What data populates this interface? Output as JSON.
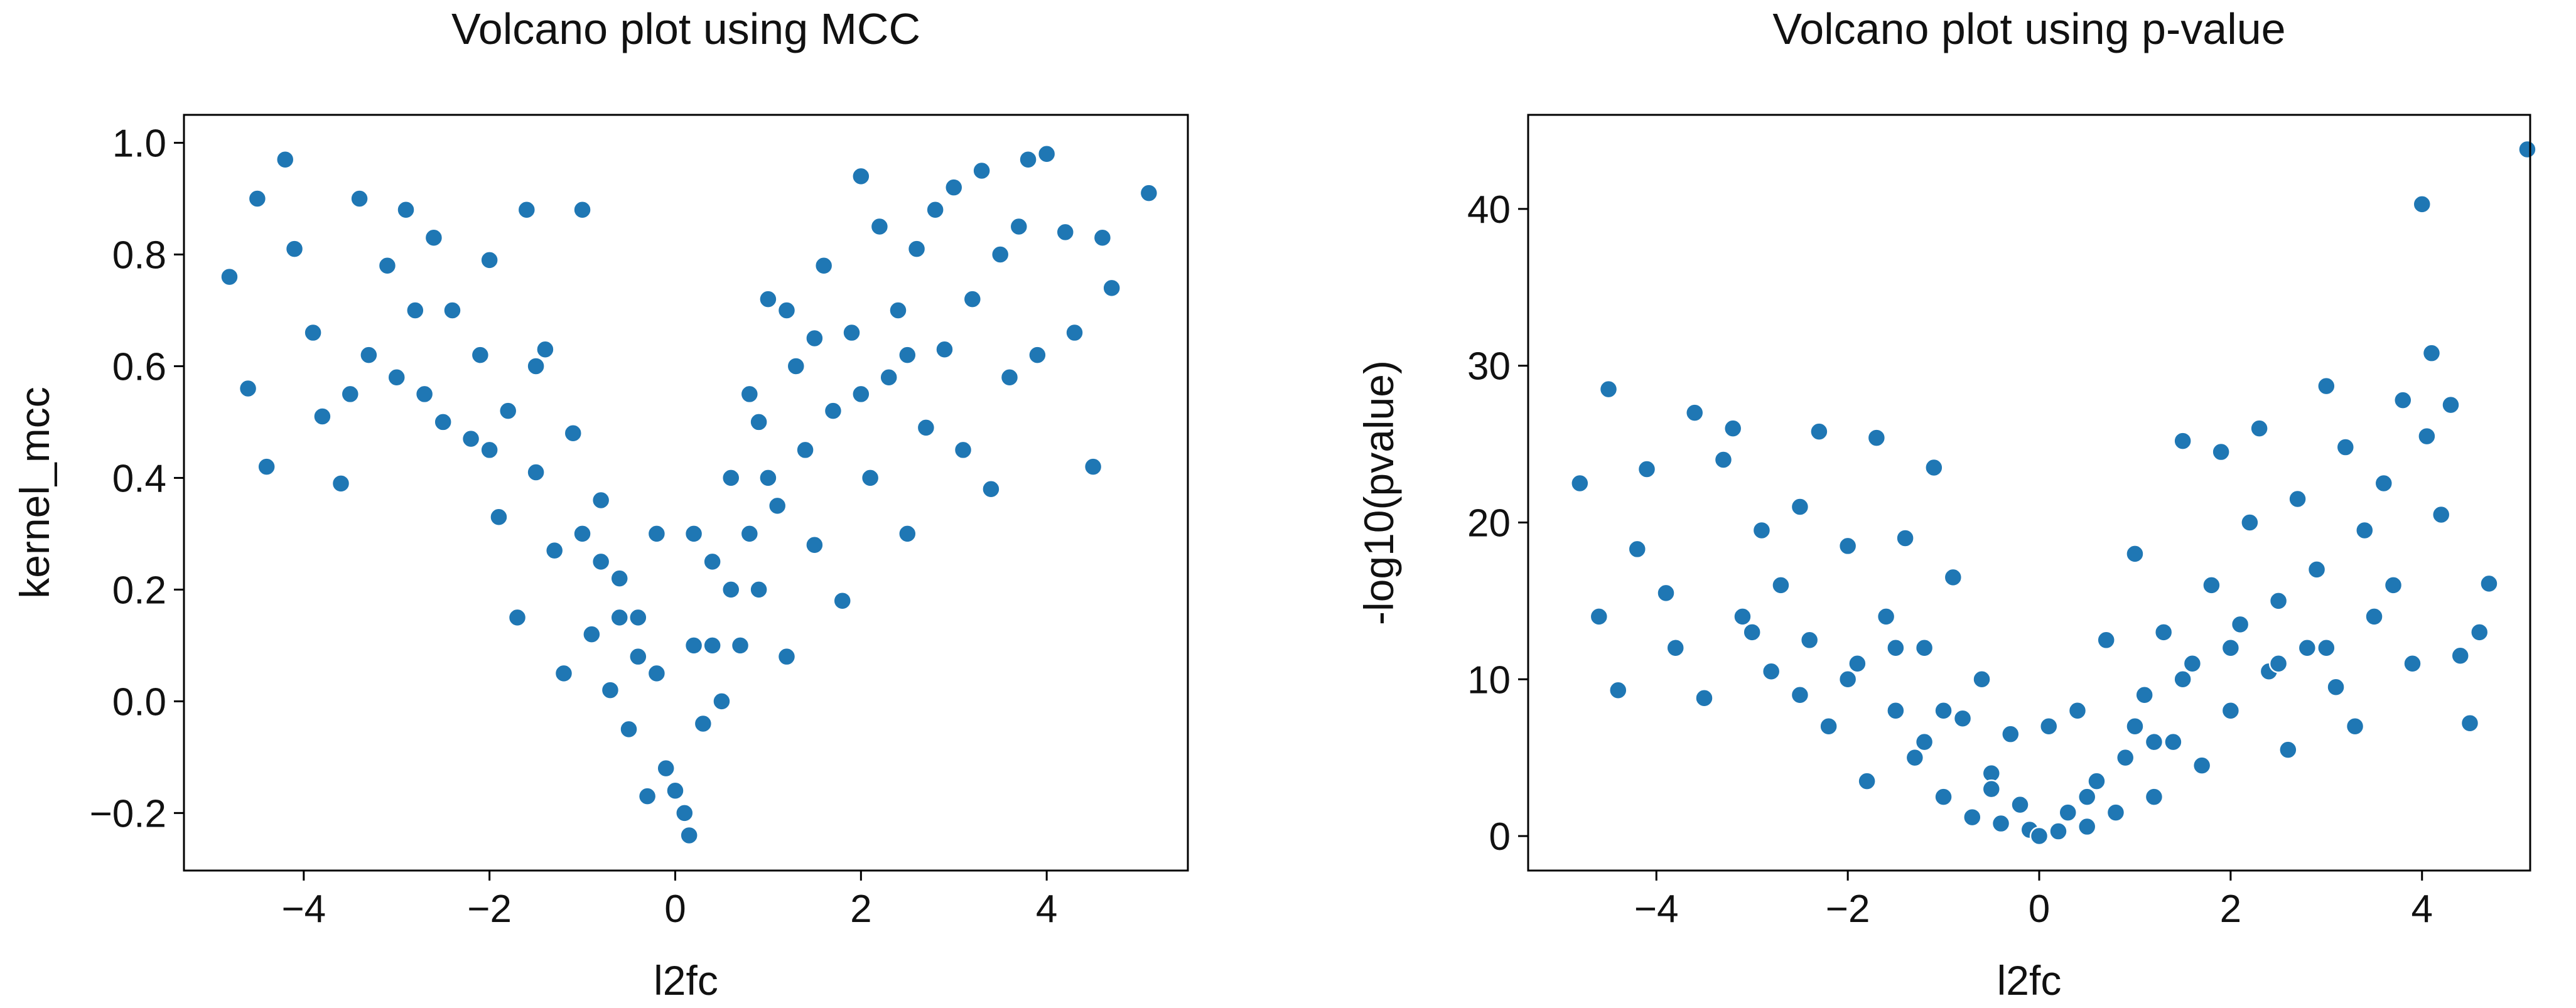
{
  "chart_data": [
    {
      "type": "scatter",
      "title": "Volcano plot using MCC",
      "xlabel": "l2fc",
      "ylabel": "kernel_mcc",
      "color": "#1f77b4",
      "xlim": [
        -5.29,
        5.52
      ],
      "ylim": [
        -0.303,
        1.05
      ],
      "xticks": [
        {
          "value": -4,
          "label": "−4"
        },
        {
          "value": -2,
          "label": "−2"
        },
        0,
        2,
        4
      ],
      "yticks": [
        {
          "value": -0.2,
          "label": "−0.2"
        },
        {
          "value": 0,
          "label": "0.0"
        },
        0.2,
        0.4,
        0.6,
        0.8,
        {
          "value": 1,
          "label": "1.0"
        }
      ],
      "x": [
        -4.8,
        -4.6,
        -4.5,
        -4.4,
        -4.2,
        -4.1,
        -3.9,
        -3.8,
        -3.6,
        -3.4,
        -3.3,
        -3.1,
        -2.9,
        -2.7,
        -2.6,
        -2.4,
        -2.2,
        -2.1,
        -2.0,
        -1.9,
        -1.8,
        -1.7,
        -1.6,
        -1.5,
        -1.4,
        -1.3,
        -1.2,
        -1.1,
        -1.0,
        -0.9,
        -0.8,
        -0.7,
        -0.6,
        -0.5,
        -0.4,
        -0.3,
        -0.2,
        -0.1,
        0.0,
        0.1,
        0.15,
        0.2,
        0.3,
        0.4,
        0.5,
        0.6,
        0.7,
        0.8,
        0.9,
        1.0,
        1.1,
        1.2,
        1.3,
        1.4,
        1.5,
        1.6,
        1.7,
        1.8,
        1.9,
        2.0,
        2.1,
        2.2,
        2.3,
        2.4,
        2.5,
        2.6,
        2.7,
        2.8,
        2.9,
        3.0,
        3.1,
        3.2,
        3.3,
        3.4,
        3.5,
        3.6,
        3.7,
        3.8,
        3.9,
        4.0,
        4.2,
        4.3,
        4.5,
        4.6,
        4.7,
        5.1,
        -1.0,
        -0.8,
        -0.6,
        -0.4,
        0.4,
        0.6,
        0.8,
        1.0,
        -2.5,
        -3.0,
        -2.0,
        -1.5,
        1.5,
        2.0,
        2.5,
        -0.2,
        0.2,
        -3.5,
        -2.8,
        1.2,
        0.9
      ],
      "values": [
        0.76,
        0.56,
        0.9,
        0.42,
        0.97,
        0.81,
        0.66,
        0.51,
        0.39,
        0.9,
        0.62,
        0.78,
        0.88,
        0.55,
        0.83,
        0.7,
        0.47,
        0.62,
        0.79,
        0.33,
        0.52,
        0.15,
        0.88,
        0.41,
        0.63,
        0.27,
        0.05,
        0.48,
        0.88,
        0.12,
        0.36,
        0.02,
        0.22,
        -0.05,
        0.15,
        -0.17,
        0.05,
        -0.12,
        -0.16,
        -0.2,
        -0.24,
        0.1,
        -0.04,
        0.25,
        0.0,
        0.4,
        0.1,
        0.55,
        0.2,
        0.72,
        0.35,
        0.08,
        0.6,
        0.45,
        0.28,
        0.78,
        0.52,
        0.18,
        0.66,
        0.94,
        0.4,
        0.85,
        0.58,
        0.7,
        0.3,
        0.81,
        0.49,
        0.88,
        0.63,
        0.92,
        0.45,
        0.72,
        0.95,
        0.38,
        0.8,
        0.58,
        0.85,
        0.97,
        0.62,
        0.98,
        0.84,
        0.66,
        0.42,
        0.83,
        0.74,
        0.91,
        0.3,
        0.25,
        0.15,
        0.08,
        0.1,
        0.2,
        0.3,
        0.4,
        0.5,
        0.58,
        0.45,
        0.6,
        0.65,
        0.55,
        0.62,
        0.3,
        0.3,
        0.55,
        0.7,
        0.7,
        0.5
      ]
    },
    {
      "type": "scatter",
      "title": "Volcano plot using p-value",
      "xlabel": "l2fc",
      "ylabel": "-log10(pvalue)",
      "color": "#1f77b4",
      "xlim": [
        -5.34,
        5.13
      ],
      "ylim": [
        -2.2,
        46
      ],
      "xticks": [
        {
          "value": -4,
          "label": "−4"
        },
        {
          "value": -2,
          "label": "−2"
        },
        0,
        2,
        4
      ],
      "yticks": [
        0,
        10,
        20,
        30,
        40
      ],
      "x": [
        -4.8,
        -4.6,
        -4.5,
        -4.4,
        -4.2,
        -4.1,
        -3.9,
        -3.8,
        -3.6,
        -3.5,
        -3.3,
        -3.2,
        -3.1,
        -2.9,
        -2.8,
        -2.7,
        -2.5,
        -2.4,
        -2.3,
        -2.2,
        -2.0,
        -1.9,
        -1.8,
        -1.7,
        -1.6,
        -1.5,
        -1.4,
        -1.3,
        -1.2,
        -1.1,
        -1.0,
        -0.9,
        -0.8,
        -0.7,
        -0.6,
        -0.5,
        -0.4,
        -0.3,
        -0.2,
        -0.1,
        0.0,
        0.1,
        0.2,
        0.3,
        0.4,
        0.5,
        0.6,
        0.7,
        0.8,
        0.9,
        1.0,
        1.1,
        1.2,
        1.3,
        1.4,
        1.5,
        1.6,
        1.7,
        1.8,
        1.9,
        2.0,
        2.1,
        2.2,
        2.3,
        2.4,
        2.5,
        2.6,
        2.7,
        2.8,
        2.9,
        3.0,
        3.1,
        3.2,
        3.3,
        3.4,
        3.5,
        3.6,
        3.7,
        3.8,
        3.9,
        4.0,
        4.05,
        4.1,
        4.2,
        4.3,
        4.4,
        4.5,
        4.6,
        4.7,
        5.1,
        -2.0,
        -1.5,
        -1.0,
        -0.5,
        0.5,
        1.0,
        1.5,
        2.0,
        -3.0,
        3.0,
        -2.5,
        2.5,
        -1.2,
        1.2
      ],
      "values": [
        22.5,
        14,
        28.5,
        9.3,
        18.3,
        23.4,
        15.5,
        12,
        27,
        8.8,
        24,
        26,
        14,
        19.5,
        10.5,
        16,
        21,
        12.5,
        25.8,
        7,
        18.5,
        11,
        3.5,
        25.4,
        14,
        8,
        19,
        5,
        12,
        23.5,
        2.5,
        16.5,
        7.5,
        1.2,
        10,
        4,
        0.8,
        6.5,
        2,
        0.4,
        0.0,
        7,
        0.3,
        1.5,
        8,
        0.6,
        3.5,
        12.5,
        1.5,
        5,
        18,
        9,
        2.5,
        13,
        6,
        25.2,
        11,
        4.5,
        16,
        24.5,
        8,
        13.5,
        20,
        26,
        10.5,
        15,
        5.5,
        21.5,
        12,
        17,
        28.7,
        9.5,
        24.8,
        7,
        19.5,
        14,
        22.5,
        16,
        27.8,
        11,
        40.3,
        25.5,
        30.8,
        20.5,
        27.5,
        11.5,
        7.2,
        13,
        16.1,
        43.8,
        10,
        12,
        8,
        3,
        2.5,
        7,
        10,
        12,
        13,
        12,
        9,
        11,
        6,
        6
      ]
    }
  ]
}
